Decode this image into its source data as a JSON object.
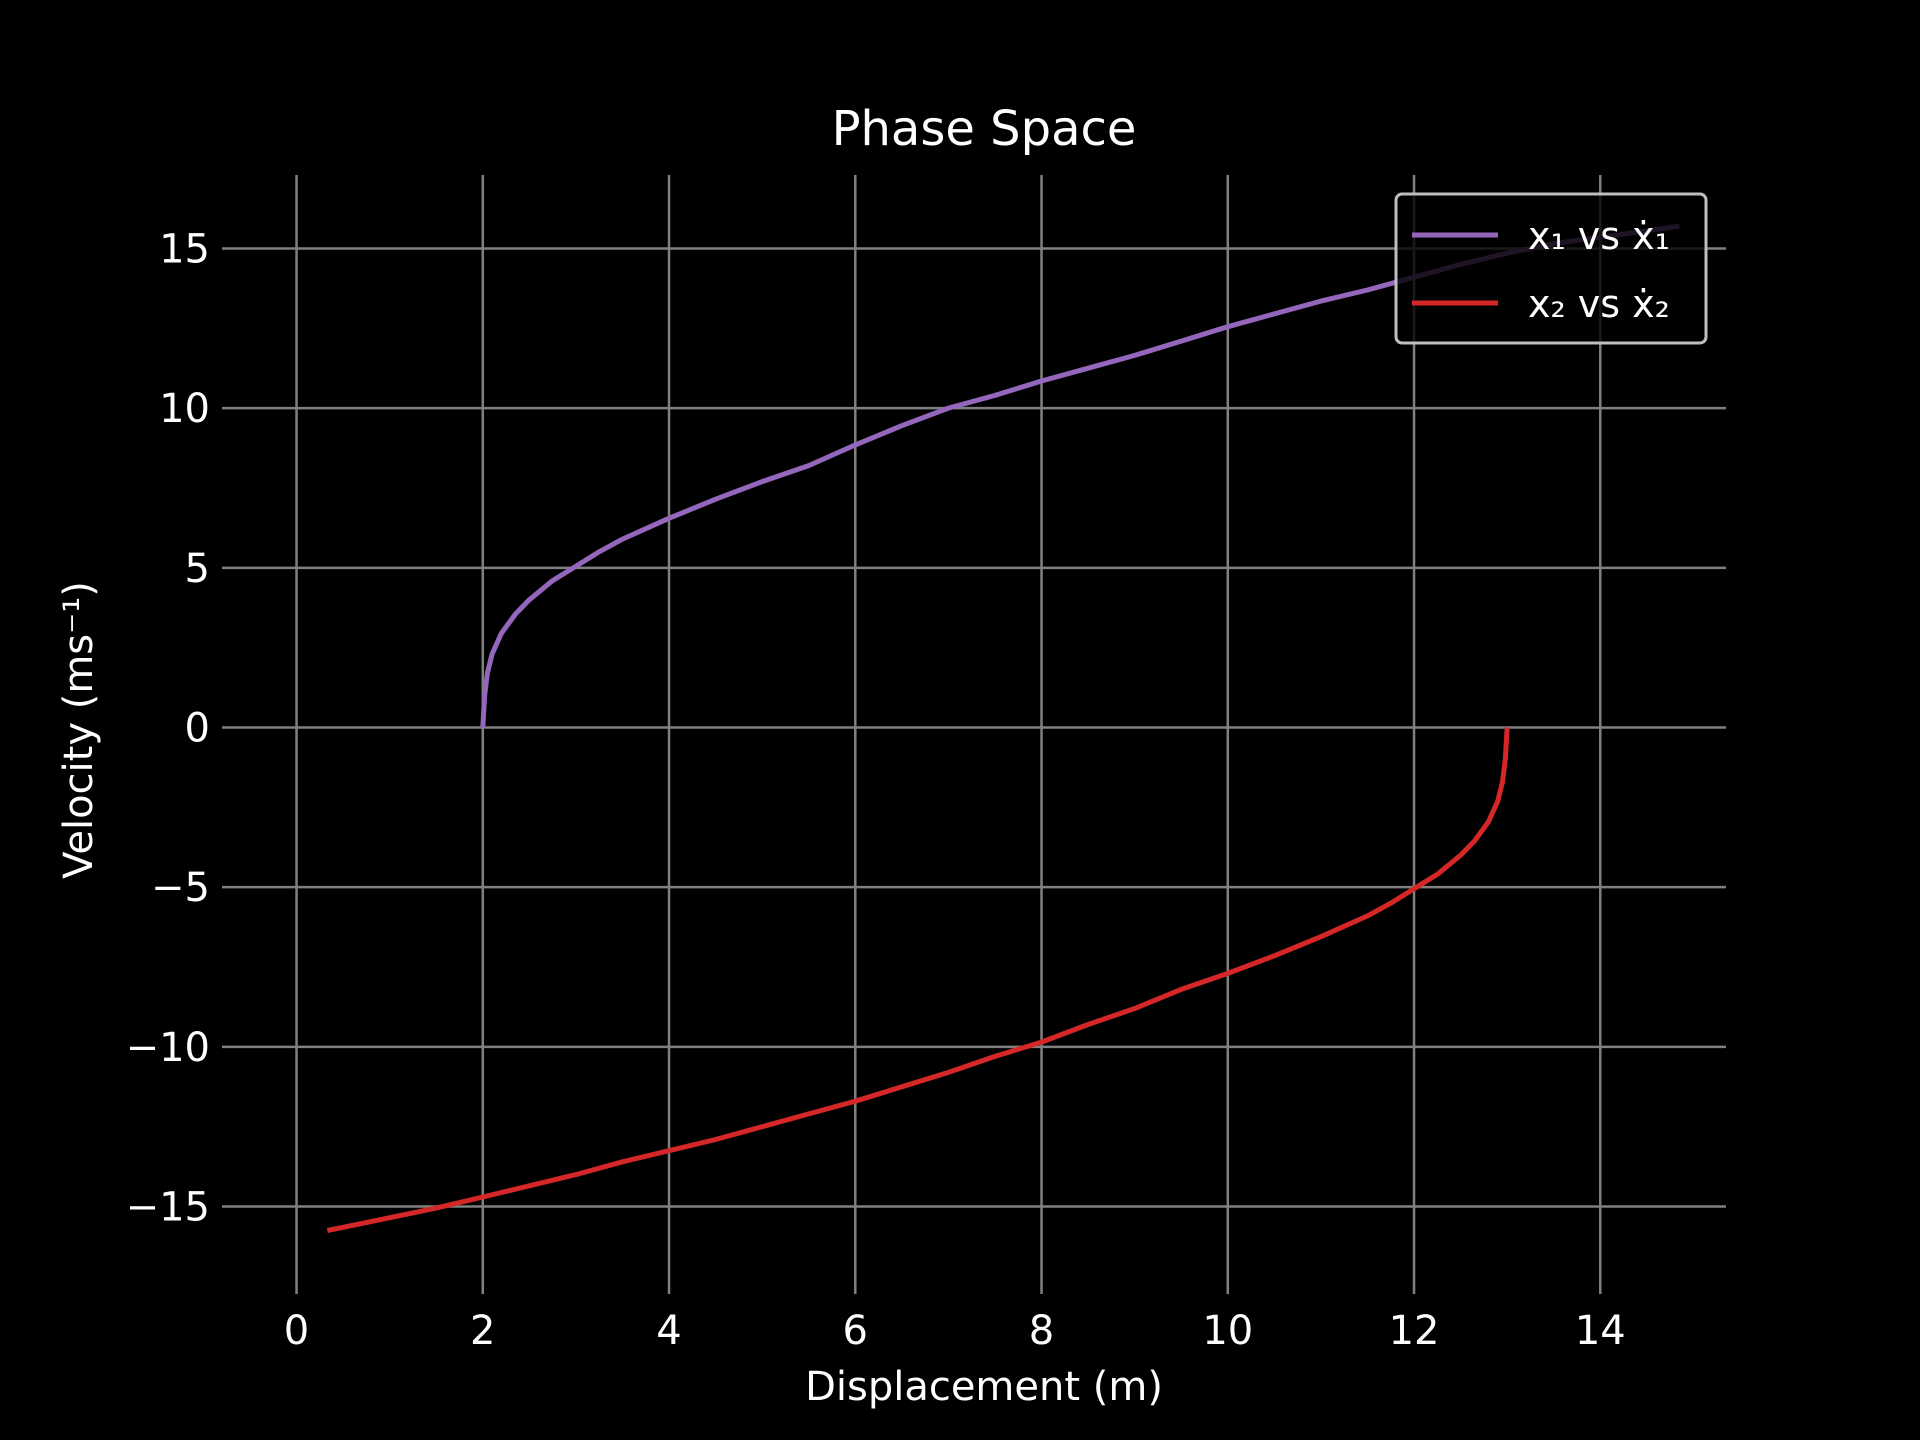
{
  "chart_data": {
    "type": "line",
    "title": "Phase Space",
    "xlabel": "Displacement (m)",
    "ylabel": "Velocity (ms⁻¹)",
    "xlim": [
      -0.65,
      15.35
    ],
    "ylim": [
      -17.3,
      17.3
    ],
    "xticks": [
      0,
      2,
      4,
      6,
      8,
      10,
      12,
      14
    ],
    "yticks": [
      15,
      10,
      5,
      0,
      -5,
      -10,
      -15
    ],
    "xtick_labels": [
      "0",
      "2",
      "4",
      "6",
      "8",
      "10",
      "12",
      "14"
    ],
    "ytick_labels": [
      "15",
      "10",
      "5",
      "0",
      "−5",
      "−10",
      "−15"
    ],
    "grid": true,
    "legend_position": "top-right",
    "background": "#000000",
    "series": [
      {
        "name": "x₁ vs ẋ₁",
        "color": "#9467bd",
        "x": [
          2.0,
          2.02,
          2.05,
          2.1,
          2.2,
          2.35,
          2.5,
          2.75,
          3.0,
          3.25,
          3.5,
          4.0,
          4.5,
          5.0,
          5.5,
          6.0,
          6.5,
          7.0,
          7.5,
          8.0,
          8.5,
          9.0,
          9.5,
          10.0,
          10.5,
          11.0,
          11.5,
          12.0,
          12.5,
          13.0,
          13.5,
          14.0,
          14.5,
          14.85
        ],
        "y": [
          0.0,
          1.0,
          1.7,
          2.3,
          2.95,
          3.55,
          4.0,
          4.6,
          5.05,
          5.5,
          5.9,
          6.55,
          7.15,
          7.7,
          8.2,
          8.85,
          9.45,
          10.0,
          10.4,
          10.85,
          11.25,
          11.65,
          12.1,
          12.55,
          12.95,
          13.35,
          13.7,
          14.1,
          14.5,
          14.85,
          15.15,
          15.35,
          15.55,
          15.7
        ]
      },
      {
        "name": "x₂ vs ẋ₂",
        "color": "#d62728",
        "x": [
          13.0,
          12.98,
          12.95,
          12.9,
          12.8,
          12.65,
          12.5,
          12.25,
          12.0,
          11.75,
          11.5,
          11.0,
          10.5,
          10.0,
          9.5,
          9.0,
          8.5,
          8.0,
          7.5,
          7.0,
          6.5,
          6.0,
          5.5,
          5.0,
          4.5,
          4.0,
          3.5,
          3.0,
          2.5,
          2.0,
          1.5,
          1.0,
          0.5,
          0.33
        ],
        "y": [
          0.0,
          -1.0,
          -1.7,
          -2.3,
          -2.95,
          -3.55,
          -4.0,
          -4.6,
          -5.05,
          -5.5,
          -5.9,
          -6.55,
          -7.15,
          -7.7,
          -8.2,
          -8.8,
          -9.3,
          -9.85,
          -10.3,
          -10.8,
          -11.25,
          -11.7,
          -12.1,
          -12.5,
          -12.9,
          -13.25,
          -13.6,
          -14.0,
          -14.35,
          -14.7,
          -15.05,
          -15.35,
          -15.65,
          -15.75
        ]
      }
    ]
  }
}
